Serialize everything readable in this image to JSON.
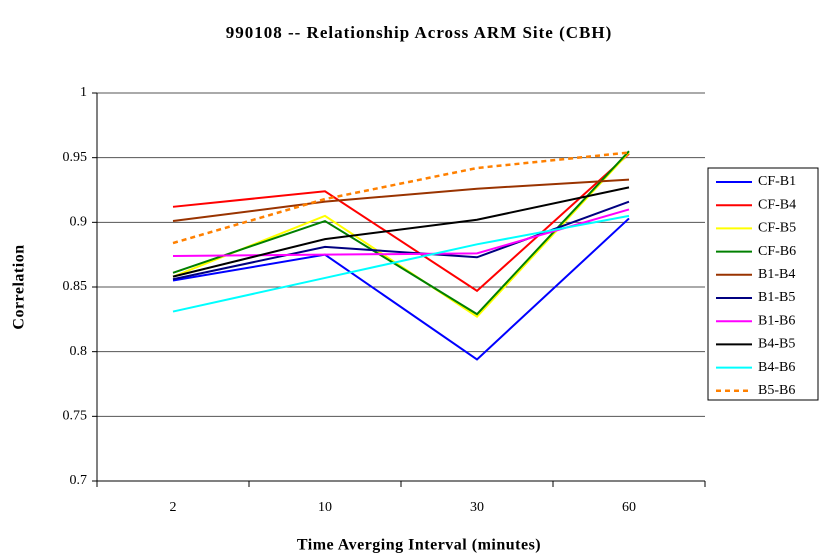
{
  "chart_data": {
    "type": "line",
    "title": "990108 -- Relationship Across ARM Site (CBH)",
    "x_label": "Time Averging Interval (minutes)",
    "y_label": "Correlation",
    "categories": [
      "2",
      "10",
      "30",
      "60"
    ],
    "ylim": [
      0.7,
      1
    ],
    "yticks": [
      0.7,
      0.75,
      0.8,
      0.85,
      0.9,
      0.95,
      1
    ],
    "grid": true,
    "legend": "right",
    "series": [
      {
        "name": "CF-B1",
        "color": "#0000ff",
        "values": [
          0.855,
          0.875,
          0.794,
          0.903
        ]
      },
      {
        "name": "CF-B4",
        "color": "#ff0000",
        "values": [
          0.912,
          0.924,
          0.847,
          0.953
        ]
      },
      {
        "name": "CF-B5",
        "color": "#ffff00",
        "values": [
          0.858,
          0.905,
          0.827,
          0.954
        ]
      },
      {
        "name": "CF-B6",
        "color": "#008000",
        "values": [
          0.861,
          0.901,
          0.829,
          0.955
        ]
      },
      {
        "name": "B1-B4",
        "color": "#993300",
        "values": [
          0.901,
          0.916,
          0.926,
          0.933
        ]
      },
      {
        "name": "B1-B5",
        "color": "#000080",
        "values": [
          0.856,
          0.881,
          0.873,
          0.916
        ]
      },
      {
        "name": "B1-B6",
        "color": "#ff00ff",
        "values": [
          0.874,
          0.875,
          0.876,
          0.91
        ]
      },
      {
        "name": "B4-B5",
        "color": "#000000",
        "values": [
          0.858,
          0.887,
          0.902,
          0.927
        ]
      },
      {
        "name": "B4-B6",
        "color": "#00ffff",
        "values": [
          0.831,
          0.857,
          0.883,
          0.905
        ]
      },
      {
        "name": "B5-B6",
        "color": "#ff8000",
        "dashed": true,
        "values": [
          0.884,
          0.918,
          0.942,
          0.954
        ]
      }
    ]
  }
}
